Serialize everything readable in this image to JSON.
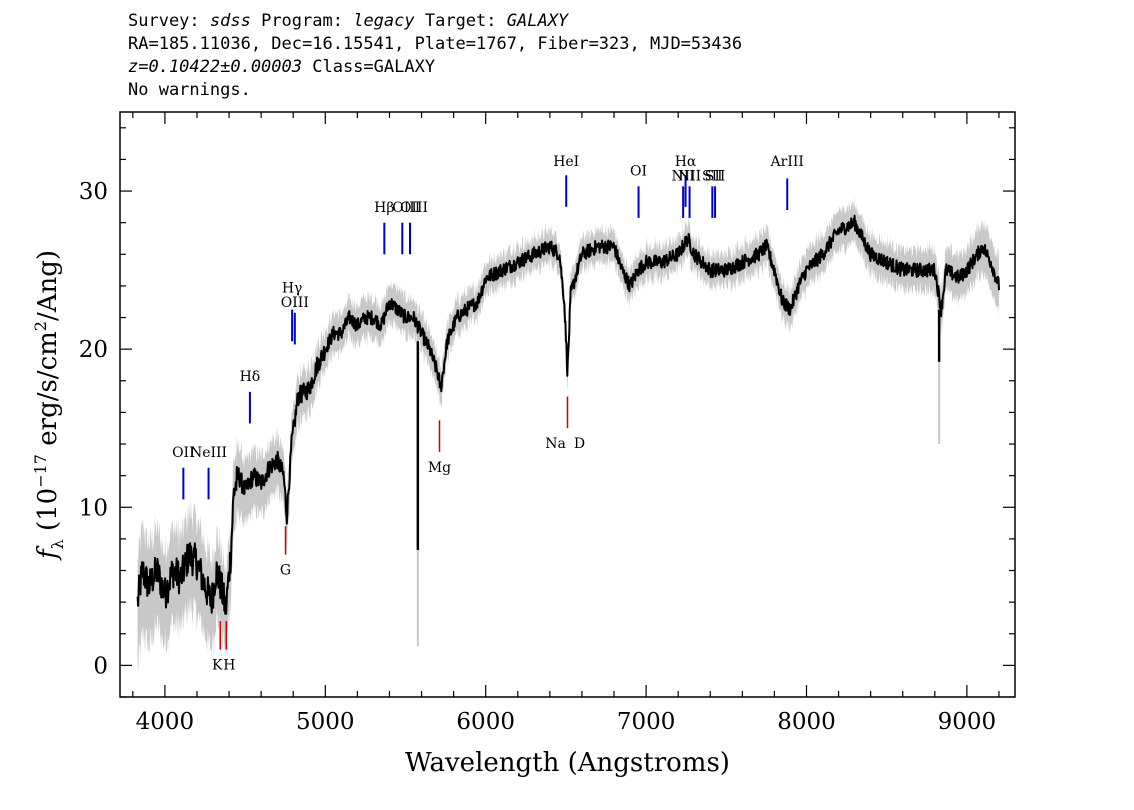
{
  "header": {
    "line1": {
      "survey_label": "Survey: ",
      "survey": "sdss",
      "program_label": " Program: ",
      "program": "legacy",
      "target_label": " Target: ",
      "target": "GALAXY"
    },
    "line2": "RA=185.11036, Dec=16.15541, Plate=1767, Fiber=323, MJD=53436",
    "line3": {
      "z": "z=0.10422±0.00003",
      "class_text": " Class=GALAXY"
    },
    "line4": "No warnings."
  },
  "chart_data": {
    "type": "line",
    "xlabel": "Wavelength (Angstroms)",
    "ylabel": "fλ (10⁻¹⁷ erg/s/cm²/Ang)",
    "xlim": [
      3720,
      9300
    ],
    "ylim": [
      -2,
      35
    ],
    "xticks": [
      4000,
      5000,
      6000,
      7000,
      8000,
      9000
    ],
    "yticks": [
      0,
      10,
      20,
      30
    ],
    "spectrum_color": "#000000",
    "error_color": "#c8c8c8",
    "emission_color": "#0000cc",
    "absorption_color": "#cc0000",
    "spectrum": [
      [
        3830,
        4
      ],
      [
        3860,
        6
      ],
      [
        3900,
        5
      ],
      [
        3950,
        6
      ],
      [
        4000,
        4.5
      ],
      [
        4050,
        6
      ],
      [
        4100,
        5.5
      ],
      [
        4150,
        7
      ],
      [
        4200,
        6.5
      ],
      [
        4250,
        5
      ],
      [
        4290,
        4
      ],
      [
        4320,
        6
      ],
      [
        4350,
        5
      ],
      [
        4380,
        3.5
      ],
      [
        4410,
        7
      ],
      [
        4430,
        11
      ],
      [
        4460,
        12
      ],
      [
        4500,
        11
      ],
      [
        4550,
        12
      ],
      [
        4600,
        11.5
      ],
      [
        4650,
        12.5
      ],
      [
        4700,
        13
      ],
      [
        4740,
        12
      ],
      [
        4760,
        9.5
      ],
      [
        4790,
        14
      ],
      [
        4830,
        17
      ],
      [
        4900,
        17.5
      ],
      [
        4950,
        19
      ],
      [
        5000,
        20
      ],
      [
        5050,
        21
      ],
      [
        5100,
        21
      ],
      [
        5150,
        22
      ],
      [
        5200,
        21.5
      ],
      [
        5250,
        22
      ],
      [
        5300,
        22
      ],
      [
        5350,
        21.5
      ],
      [
        5400,
        23
      ],
      [
        5450,
        22.5
      ],
      [
        5500,
        22
      ],
      [
        5550,
        22
      ],
      [
        5600,
        21
      ],
      [
        5650,
        20
      ],
      [
        5700,
        18.5
      ],
      [
        5720,
        17.5
      ],
      [
        5760,
        20.5
      ],
      [
        5820,
        22
      ],
      [
        5880,
        22.5
      ],
      [
        5950,
        23
      ],
      [
        6000,
        24.5
      ],
      [
        6100,
        25
      ],
      [
        6200,
        25.5
      ],
      [
        6300,
        26
      ],
      [
        6400,
        26.5
      ],
      [
        6460,
        26
      ],
      [
        6490,
        23
      ],
      [
        6510,
        18.5
      ],
      [
        6530,
        23.5
      ],
      [
        6600,
        26
      ],
      [
        6700,
        26.5
      ],
      [
        6800,
        26.5
      ],
      [
        6850,
        25
      ],
      [
        6900,
        24
      ],
      [
        6950,
        25
      ],
      [
        7000,
        25.5
      ],
      [
        7100,
        25.5
      ],
      [
        7200,
        26
      ],
      [
        7260,
        27
      ],
      [
        7300,
        26
      ],
      [
        7400,
        25
      ],
      [
        7500,
        25
      ],
      [
        7600,
        25.5
      ],
      [
        7700,
        26
      ],
      [
        7750,
        26.5
      ],
      [
        7800,
        25
      ],
      [
        7850,
        23
      ],
      [
        7900,
        22.5
      ],
      [
        7950,
        24
      ],
      [
        8000,
        25
      ],
      [
        8100,
        26
      ],
      [
        8200,
        27.5
      ],
      [
        8300,
        28
      ],
      [
        8350,
        27
      ],
      [
        8400,
        26
      ],
      [
        8500,
        25.5
      ],
      [
        8600,
        25
      ],
      [
        8700,
        25
      ],
      [
        8800,
        25
      ],
      [
        8840,
        22.5
      ],
      [
        8870,
        25
      ],
      [
        8950,
        24.5
      ],
      [
        9000,
        25
      ],
      [
        9100,
        26.5
      ],
      [
        9150,
        25.5
      ],
      [
        9200,
        24
      ]
    ],
    "error_band": [
      [
        3830,
        2.5,
        4
      ],
      [
        4000,
        2.5,
        3
      ],
      [
        4200,
        2.5,
        3
      ],
      [
        4400,
        2,
        2.5
      ],
      [
        4500,
        1.5,
        2
      ],
      [
        4800,
        1.2,
        1.5
      ],
      [
        5000,
        1,
        1
      ],
      [
        5500,
        1,
        1
      ],
      [
        6000,
        0.8,
        0.8
      ],
      [
        6500,
        0.8,
        0.8
      ],
      [
        7000,
        0.8,
        0.8
      ],
      [
        7500,
        0.8,
        0.8
      ],
      [
        8000,
        1,
        1
      ],
      [
        8500,
        1,
        1
      ],
      [
        9000,
        1.2,
        1.2
      ],
      [
        9200,
        1.5,
        1.5
      ]
    ],
    "spikes": [
      {
        "x": 5577,
        "y_top": 20.5,
        "y_bottom": 7.3,
        "err_bottom": 1.2
      },
      {
        "x": 8827,
        "y_top": 22.5,
        "y_bottom": 19.2,
        "err_bottom": 14
      }
    ],
    "emission_lines": [
      {
        "label": "OII",
        "x": 4115,
        "y_top": 12.5,
        "y_bottom": 10.5,
        "label_y": 12.8
      },
      {
        "label": "NeIII",
        "x": 4272,
        "y_top": 12.5,
        "y_bottom": 10.5,
        "label_y": 12.8
      },
      {
        "label": "Hδ",
        "x": 4530,
        "y_top": 17.3,
        "y_bottom": 15.3,
        "label_y": 17.6
      },
      {
        "label": "Hγ",
        "x": 4793,
        "y_top": 22.5,
        "y_bottom": 20.5,
        "label_y": 23.2
      },
      {
        "label": "OIII",
        "x": 4810,
        "y_top": 22.3,
        "y_bottom": 20.3,
        "label_y": 22.3
      },
      {
        "label": "Hβ",
        "x": 5368,
        "y_top": 28,
        "y_bottom": 26,
        "label_y": 28.3
      },
      {
        "label": "OIII",
        "x": 5480,
        "y_top": 28,
        "y_bottom": 26,
        "label_y": 28.3
      },
      {
        "label": "OIII",
        "x": 5528,
        "y_top": 28,
        "y_bottom": 26,
        "label_y": 28.3
      },
      {
        "label": "HeI",
        "x": 6502,
        "y_top": 31,
        "y_bottom": 29,
        "label_y": 31.2
      },
      {
        "label": "OI",
        "x": 6953,
        "y_top": 30.3,
        "y_bottom": 28.3,
        "label_y": 30.6
      },
      {
        "label": "NII",
        "x": 7231,
        "y_top": 30.3,
        "y_bottom": 28.3,
        "label_y": 30.3
      },
      {
        "label": "Hα",
        "x": 7246,
        "y_top": 31,
        "y_bottom": 29,
        "label_y": 31.2
      },
      {
        "label": "NII",
        "x": 7271,
        "y_top": 30.3,
        "y_bottom": 28.3,
        "label_y": 30.3
      },
      {
        "label": "SII",
        "x": 7413,
        "y_top": 30.3,
        "y_bottom": 28.3,
        "label_y": 30.3
      },
      {
        "label": "SII",
        "x": 7430,
        "y_top": 30.3,
        "y_bottom": 28.3,
        "label_y": 30.3
      },
      {
        "label": "ArIII",
        "x": 7880,
        "y_top": 30.8,
        "y_bottom": 28.8,
        "label_y": 31.2
      }
    ],
    "absorption_lines": [
      {
        "label": "K",
        "x": 4345,
        "y_top": 2.8,
        "y_bottom": 1
      },
      {
        "label": "H",
        "x": 4383,
        "y_top": 2.8,
        "y_bottom": 1
      },
      {
        "label": "G",
        "x": 4752,
        "y_top": 8.8,
        "y_bottom": 7
      },
      {
        "label": "Mg",
        "x": 5712,
        "y_top": 15.5,
        "y_bottom": 13.5
      },
      {
        "label": "Na",
        "x": 6510,
        "y_top": 17,
        "y_bottom": 15
      },
      {
        "label": "D",
        "x": 6510,
        "y_top": 17,
        "y_bottom": 15
      }
    ]
  }
}
